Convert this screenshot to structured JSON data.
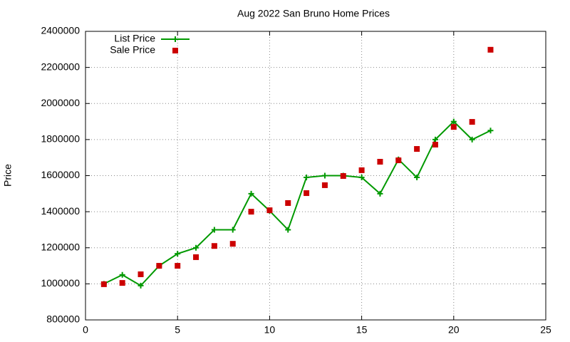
{
  "chart_data": {
    "type": "line",
    "title": "Aug 2022 San Bruno Home Prices",
    "y_label": "Price",
    "x": [
      1,
      2,
      3,
      4,
      5,
      6,
      7,
      8,
      9,
      10,
      11,
      12,
      13,
      14,
      15,
      16,
      17,
      18,
      19,
      20,
      21,
      22
    ],
    "series": [
      {
        "name": "List Price",
        "color": "#009900",
        "style": "linespoints",
        "values": [
          1000000,
          1050000,
          990000,
          1100000,
          1167000,
          1200000,
          1300000,
          1300000,
          1500000,
          1405000,
          1300000,
          1590000,
          1600000,
          1600000,
          1590000,
          1500000,
          1690000,
          1590000,
          1800000,
          1900000,
          1800000,
          1850000
        ]
      },
      {
        "name": "Sale Price",
        "color": "#cc0000",
        "style": "points",
        "values": [
          998000,
          1005000,
          1053000,
          1100000,
          1100000,
          1148000,
          1210000,
          1222000,
          1400000,
          1408000,
          1448000,
          1503000,
          1547000,
          1598000,
          1630000,
          1677000,
          1685000,
          1748000,
          1772000,
          1870000,
          1898000,
          2298000
        ]
      }
    ],
    "xlim": [
      0,
      25
    ],
    "xticks": [
      0,
      5,
      10,
      15,
      20,
      25
    ],
    "ylim": [
      800000,
      2400000
    ],
    "yticks": [
      800000,
      1000000,
      1200000,
      1400000,
      1600000,
      1800000,
      2000000,
      2200000,
      2400000
    ],
    "grid": true,
    "legend": "top-left"
  }
}
